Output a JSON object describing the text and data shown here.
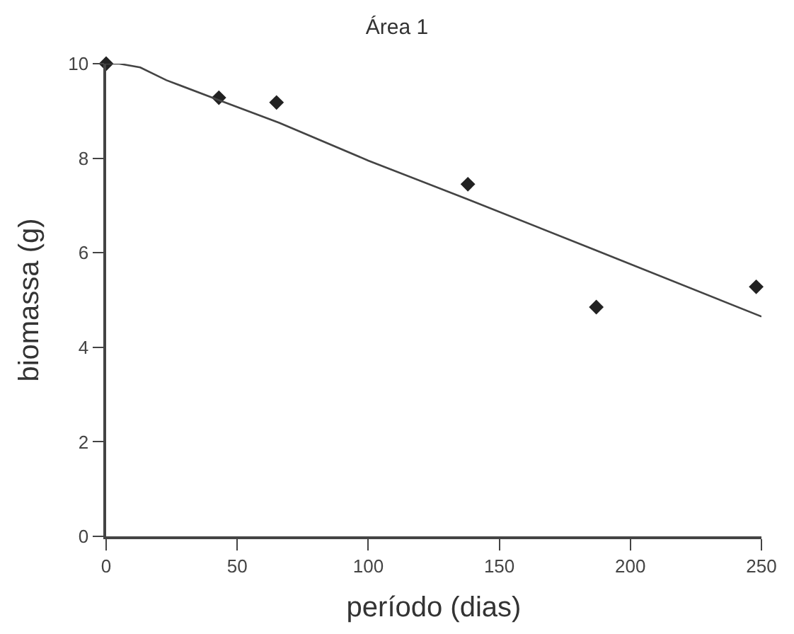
{
  "chart_data": {
    "type": "scatter",
    "title": "Área 1",
    "xlabel": "período (dias)",
    "ylabel": "biomassa (g)",
    "xlim": [
      0,
      250
    ],
    "xticks": [
      0,
      50,
      100,
      150,
      200,
      250
    ],
    "ylim": [
      0,
      10
    ],
    "yticks": [
      0,
      2,
      4,
      6,
      8,
      10
    ],
    "series": [
      {
        "marker": "diamond",
        "color": "#222222",
        "x": [
          0,
          43,
          65,
          138,
          187,
          248
        ],
        "values": [
          10,
          9.28,
          9.18,
          7.45,
          4.85,
          5.28
        ]
      },
      {
        "type": "line",
        "marker": "none",
        "color": "#444444",
        "x": [
          0,
          5,
          13,
          23,
          43,
          66,
          100,
          138,
          186,
          250
        ],
        "values": [
          10,
          10,
          9.92,
          9.65,
          9.23,
          8.75,
          7.95,
          7.13,
          6.07,
          4.65
        ]
      }
    ]
  }
}
